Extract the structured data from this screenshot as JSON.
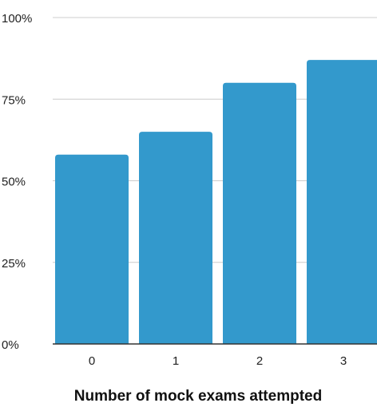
{
  "chart_data": {
    "type": "bar",
    "categories": [
      "0",
      "1",
      "2",
      "3"
    ],
    "values": [
      58,
      65,
      80,
      87
    ],
    "title": "",
    "xlabel": "Number of mock exams attempted",
    "ylabel": "",
    "ylim": [
      0,
      100
    ],
    "y_ticks": [
      0,
      25,
      50,
      75,
      100
    ],
    "y_tick_labels": [
      "0%",
      "25%",
      "50%",
      "75%",
      "100%"
    ],
    "grid": true,
    "legend": "none",
    "bar_color": "#3399cc",
    "grid_color": "#cccccc",
    "baseline_color": "#333333"
  }
}
